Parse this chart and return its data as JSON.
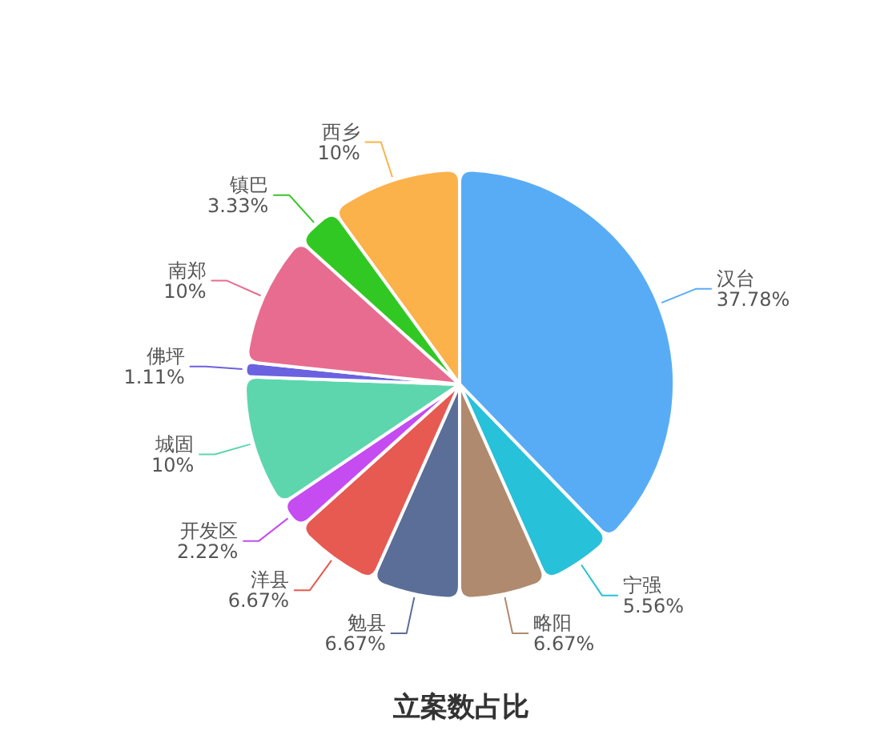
{
  "chart_data": {
    "type": "pie",
    "title": "立案数占比",
    "categories": [
      "汉台",
      "宁强",
      "略阳",
      "勉县",
      "洋县",
      "开发区",
      "城固",
      "佛坪",
      "南郑",
      "镇巴",
      "西乡"
    ],
    "values": [
      37.78,
      5.56,
      6.67,
      6.67,
      6.67,
      2.22,
      10,
      1.11,
      10,
      3.33,
      10
    ],
    "colors": [
      "#58acf5",
      "#27c1d9",
      "#b08a6e",
      "#5a6e98",
      "#e65a52",
      "#c44cf0",
      "#5dd6ae",
      "#6a62e0",
      "#e86c90",
      "#32c823",
      "#fbb24a"
    ],
    "value_labels": [
      "37.78%",
      "5.56%",
      "6.67%",
      "6.67%",
      "6.67%",
      "2.22%",
      "10%",
      "1.11%",
      "10%",
      "3.33%",
      "10%"
    ]
  }
}
